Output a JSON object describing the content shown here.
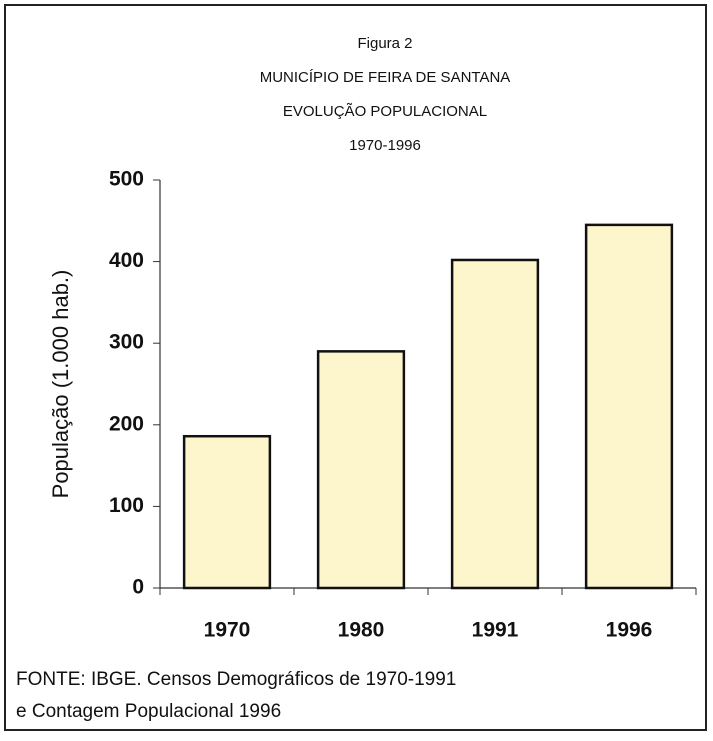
{
  "chart_data": {
    "type": "bar",
    "title": [
      "Figura 2",
      "MUNICÍPIO DE FEIRA DE SANTANA",
      "EVOLUÇÃO POPULACIONAL",
      "1970-1996"
    ],
    "ylabel": "População (1.000 hab.)",
    "categories": [
      "1970",
      "1980",
      "1991",
      "1996"
    ],
    "values": [
      186,
      290,
      402,
      445
    ],
    "color": "#fdf6cc",
    "ylim": [
      0,
      500
    ],
    "yticks": [
      0,
      100,
      200,
      300,
      400,
      500
    ],
    "grid": false,
    "footnote": [
      "FONTE: IBGE. Censos Demográficos de 1970-1991",
      "e Contagem Populacional 1996"
    ]
  }
}
